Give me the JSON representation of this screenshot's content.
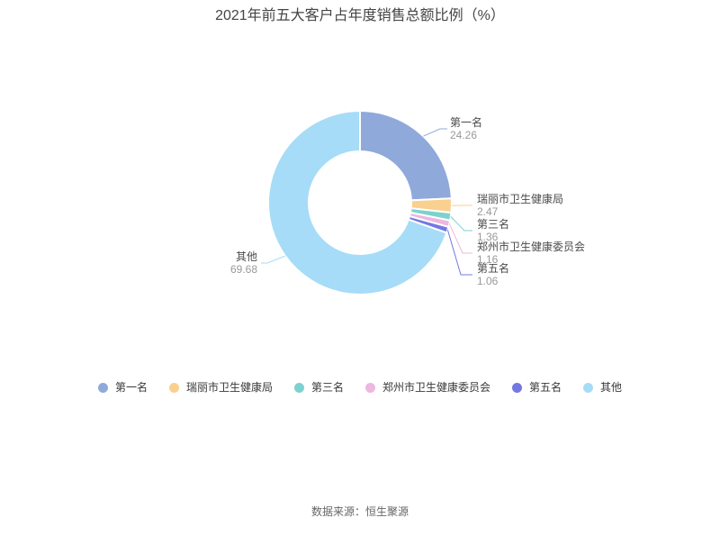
{
  "title": "2021年前五大客户占年度销售总额比例（%）",
  "footer": {
    "source": "数据来源：恒生聚源"
  },
  "chart_data": {
    "type": "pie",
    "donut": true,
    "title": "2021年前五大客户占年度销售总额比例（%）",
    "unit": "%",
    "start_angle": "top",
    "direction": "clockwise",
    "slices": [
      {
        "label": "第一名",
        "value": 24.26,
        "color": "#90A9DB"
      },
      {
        "label": "瑞丽市卫生健康局",
        "value": 2.47,
        "color": "#FAD08F"
      },
      {
        "label": "第三名",
        "value": 1.36,
        "color": "#7DD2CD"
      },
      {
        "label": "郑州市卫生健康委员会",
        "value": 1.16,
        "color": "#EDB7DF"
      },
      {
        "label": "第五名",
        "value": 1.06,
        "color": "#7478E2"
      },
      {
        "label": "其他",
        "value": 69.68,
        "color": "#A6DCF7"
      }
    ],
    "legend_position": "bottom",
    "legend": [
      "第一名",
      "瑞丽市卫生健康局",
      "第三名",
      "郑州市卫生健康委员会",
      "第五名",
      "其他"
    ],
    "label_name_color": "#4A4A4A",
    "label_value_color": "#999999"
  }
}
